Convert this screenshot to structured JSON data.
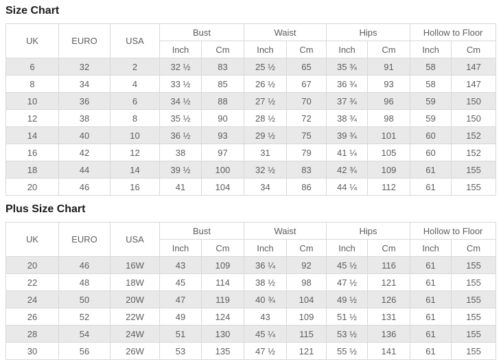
{
  "colors": {
    "stripe": "#e9e9e9",
    "border": "#d8d8d8",
    "text": "#5d5d5d",
    "title": "#1a1a1a"
  },
  "size_chart": {
    "title": "Size Chart",
    "col_headers": [
      "UK",
      "EURO",
      "USA"
    ],
    "group_headers": [
      "Bust",
      "Waist",
      "Hips",
      "Hollow to Floor"
    ],
    "unit_headers": [
      "Inch",
      "Cm"
    ],
    "rows": [
      [
        "6",
        "32",
        "2",
        "32 ½",
        "83",
        "25 ½",
        "65",
        "35 ¾",
        "91",
        "58",
        "147"
      ],
      [
        "8",
        "34",
        "4",
        "33 ½",
        "85",
        "26 ½",
        "67",
        "36 ¾",
        "93",
        "58",
        "147"
      ],
      [
        "10",
        "36",
        "6",
        "34 ½",
        "88",
        "27 ½",
        "70",
        "37 ¾",
        "96",
        "59",
        "150"
      ],
      [
        "12",
        "38",
        "8",
        "35 ½",
        "90",
        "28 ½",
        "72",
        "38 ¾",
        "98",
        "59",
        "150"
      ],
      [
        "14",
        "40",
        "10",
        "36 ½",
        "93",
        "29 ½",
        "75",
        "39 ¾",
        "101",
        "60",
        "152"
      ],
      [
        "16",
        "42",
        "12",
        "38",
        "97",
        "31",
        "79",
        "41 ¼",
        "105",
        "60",
        "152"
      ],
      [
        "18",
        "44",
        "14",
        "39 ½",
        "100",
        "32 ½",
        "83",
        "42 ¾",
        "109",
        "61",
        "155"
      ],
      [
        "20",
        "46",
        "16",
        "41",
        "104",
        "34",
        "86",
        "44 ¼",
        "112",
        "61",
        "155"
      ]
    ]
  },
  "plus_size_chart": {
    "title": "Plus Size Chart",
    "col_headers": [
      "UK",
      "EURO",
      "USA"
    ],
    "group_headers": [
      "Bust",
      "Waist",
      "Hips",
      "Hollow to Floor"
    ],
    "unit_headers": [
      "Inch",
      "Cm"
    ],
    "rows": [
      [
        "20",
        "46",
        "16W",
        "43",
        "109",
        "36 ¼",
        "92",
        "45 ½",
        "116",
        "61",
        "155"
      ],
      [
        "22",
        "48",
        "18W",
        "45",
        "114",
        "38 ½",
        "98",
        "47 ½",
        "121",
        "61",
        "155"
      ],
      [
        "24",
        "50",
        "20W",
        "47",
        "119",
        "40 ¾",
        "104",
        "49 ½",
        "126",
        "61",
        "155"
      ],
      [
        "26",
        "52",
        "22W",
        "49",
        "124",
        "43",
        "109",
        "51 ½",
        "131",
        "61",
        "155"
      ],
      [
        "28",
        "54",
        "24W",
        "51",
        "130",
        "45 ¼",
        "115",
        "53 ½",
        "136",
        "61",
        "155"
      ],
      [
        "30",
        "56",
        "26W",
        "53",
        "135",
        "47 ½",
        "121",
        "55 ½",
        "141",
        "61",
        "155"
      ]
    ]
  }
}
